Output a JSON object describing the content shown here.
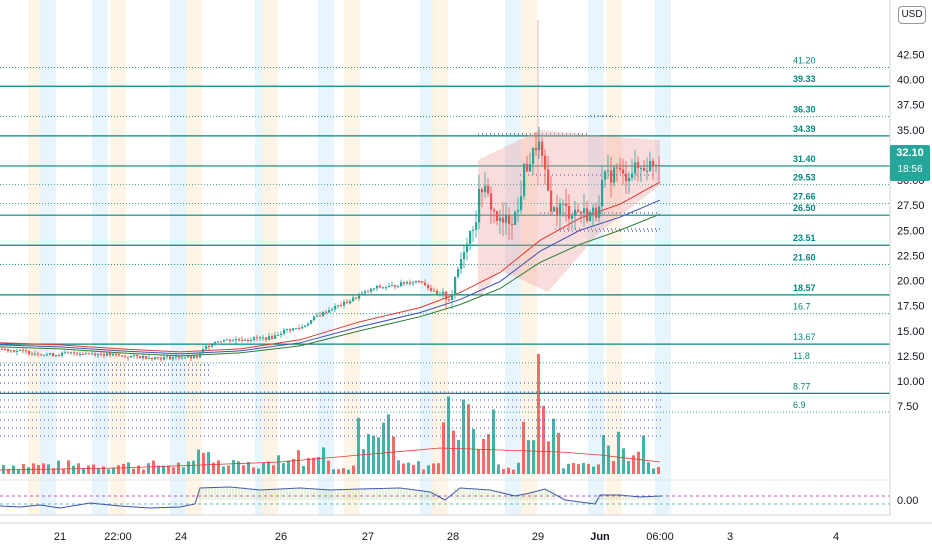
{
  "currency_label": "USD",
  "last_price": "32.10",
  "countdown": "18:56",
  "colors": {
    "up": "#26a69a",
    "down": "#ef5350",
    "level_line": "#00897b",
    "level_text": "#00897b",
    "ma_red": "#e53935",
    "ma_blue": "#3f51b5",
    "ma_green": "#2e7d32",
    "session_blue": "#e3f2fd",
    "session_orange": "#fff3e0"
  },
  "chart_data": {
    "type": "candlestick",
    "y_axis": {
      "ticks": [
        "42.50",
        "40.00",
        "37.50",
        "35.00",
        "32.50",
        "30.00",
        "27.50",
        "25.00",
        "22.50",
        "20.00",
        "17.50",
        "15.00",
        "12.50",
        "10.00",
        "7.50"
      ],
      "range": [
        7.5,
        42.5
      ]
    },
    "oscillator_axis": {
      "ticks": [
        "0.00"
      ]
    },
    "x_axis": {
      "ticks": [
        "21",
        "22:00",
        "24",
        "26",
        "27",
        "28",
        "29",
        "Jun",
        "06:00",
        "3",
        "4"
      ]
    },
    "levels": [
      {
        "label": "41.20",
        "value": 41.2,
        "style": "dotted",
        "bold": false
      },
      {
        "label": "39.33",
        "value": 39.33,
        "style": "solid",
        "bold": true
      },
      {
        "label": "36.30",
        "value": 36.3,
        "style": "dotted",
        "bold": true
      },
      {
        "label": "34.39",
        "value": 34.39,
        "style": "solid",
        "bold": true
      },
      {
        "label": "31.40",
        "value": 31.4,
        "style": "solid",
        "bold": true
      },
      {
        "label": "29.53",
        "value": 29.53,
        "style": "dotted",
        "bold": true
      },
      {
        "label": "27.66",
        "value": 27.66,
        "style": "dotted",
        "bold": true
      },
      {
        "label": "26.50",
        "value": 26.5,
        "style": "solid",
        "bold": true
      },
      {
        "label": "23.51",
        "value": 23.51,
        "style": "solid",
        "bold": true
      },
      {
        "label": "21.60",
        "value": 21.6,
        "style": "dotted",
        "bold": true
      },
      {
        "label": "18.57",
        "value": 18.57,
        "style": "solid",
        "bold": true
      },
      {
        "label": "16.7",
        "value": 16.7,
        "style": "dotted",
        "bold": false
      },
      {
        "label": "13.67",
        "value": 13.67,
        "style": "solid",
        "bold": false
      },
      {
        "label": "11.8",
        "value": 11.8,
        "style": "dotted",
        "bold": false
      },
      {
        "label": "8.77",
        "value": 8.77,
        "style": "solid",
        "bold": false
      },
      {
        "label": "6.9",
        "value": 6.9,
        "style": "dotted",
        "bold": false
      }
    ],
    "price_path": [
      [
        0,
        13.2
      ],
      [
        25,
        12.9
      ],
      [
        50,
        12.6
      ],
      [
        75,
        12.8
      ],
      [
        100,
        12.7
      ],
      [
        120,
        12.5
      ],
      [
        140,
        12.4
      ],
      [
        160,
        12.3
      ],
      [
        180,
        12.4
      ],
      [
        195,
        12.3
      ],
      [
        205,
        13.4
      ],
      [
        215,
        14.0
      ],
      [
        230,
        14.1
      ],
      [
        250,
        14.2
      ],
      [
        270,
        14.3
      ],
      [
        285,
        15.1
      ],
      [
        300,
        15.3
      ],
      [
        315,
        16.4
      ],
      [
        330,
        17.2
      ],
      [
        345,
        17.8
      ],
      [
        360,
        18.6
      ],
      [
        375,
        19.3
      ],
      [
        390,
        19.4
      ],
      [
        405,
        19.8
      ],
      [
        420,
        20.0
      ],
      [
        435,
        18.6
      ],
      [
        450,
        18.3
      ],
      [
        458,
        21.5
      ],
      [
        465,
        23.8
      ],
      [
        475,
        26.4
      ],
      [
        480,
        29.7
      ],
      [
        487,
        28.2
      ],
      [
        494,
        26.5
      ],
      [
        500,
        25.5
      ],
      [
        510,
        26.2
      ],
      [
        518,
        27.0
      ],
      [
        522,
        30.8
      ],
      [
        530,
        32.0
      ],
      [
        537,
        34.0
      ],
      [
        540,
        32.4
      ],
      [
        546,
        29.2
      ],
      [
        552,
        26.8
      ],
      [
        560,
        27.4
      ],
      [
        568,
        26.8
      ],
      [
        575,
        27.0
      ],
      [
        585,
        26.6
      ],
      [
        595,
        26.8
      ],
      [
        602,
        30.0
      ],
      [
        610,
        30.5
      ],
      [
        616,
        31.2
      ],
      [
        622,
        30.2
      ],
      [
        630,
        31.0
      ],
      [
        640,
        31.2
      ],
      [
        650,
        31.6
      ],
      [
        660,
        32.1
      ]
    ],
    "moving_averages": [
      {
        "color": "#e53935",
        "values": [
          [
            0,
            13.8
          ],
          [
            60,
            13.6
          ],
          [
            120,
            13.2
          ],
          [
            180,
            12.9
          ],
          [
            240,
            13.2
          ],
          [
            300,
            14.1
          ],
          [
            360,
            15.9
          ],
          [
            420,
            17.3
          ],
          [
            460,
            18.8
          ],
          [
            500,
            20.8
          ],
          [
            540,
            24.0
          ],
          [
            580,
            26.2
          ],
          [
            620,
            27.6
          ],
          [
            660,
            29.8
          ]
        ]
      },
      {
        "color": "#3f51b5",
        "values": [
          [
            0,
            13.6
          ],
          [
            60,
            13.4
          ],
          [
            120,
            13.0
          ],
          [
            180,
            12.7
          ],
          [
            240,
            13.0
          ],
          [
            300,
            13.8
          ],
          [
            360,
            15.4
          ],
          [
            420,
            16.8
          ],
          [
            460,
            18.1
          ],
          [
            500,
            19.9
          ],
          [
            540,
            22.9
          ],
          [
            580,
            25.0
          ],
          [
            620,
            26.3
          ],
          [
            660,
            28.0
          ]
        ]
      },
      {
        "color": "#2e7d32",
        "values": [
          [
            0,
            13.4
          ],
          [
            60,
            13.2
          ],
          [
            120,
            12.8
          ],
          [
            180,
            12.5
          ],
          [
            240,
            12.8
          ],
          [
            300,
            13.5
          ],
          [
            360,
            15.0
          ],
          [
            420,
            16.4
          ],
          [
            460,
            17.6
          ],
          [
            500,
            19.2
          ],
          [
            540,
            21.8
          ],
          [
            580,
            23.6
          ],
          [
            620,
            25.0
          ],
          [
            660,
            26.6
          ]
        ]
      }
    ]
  }
}
